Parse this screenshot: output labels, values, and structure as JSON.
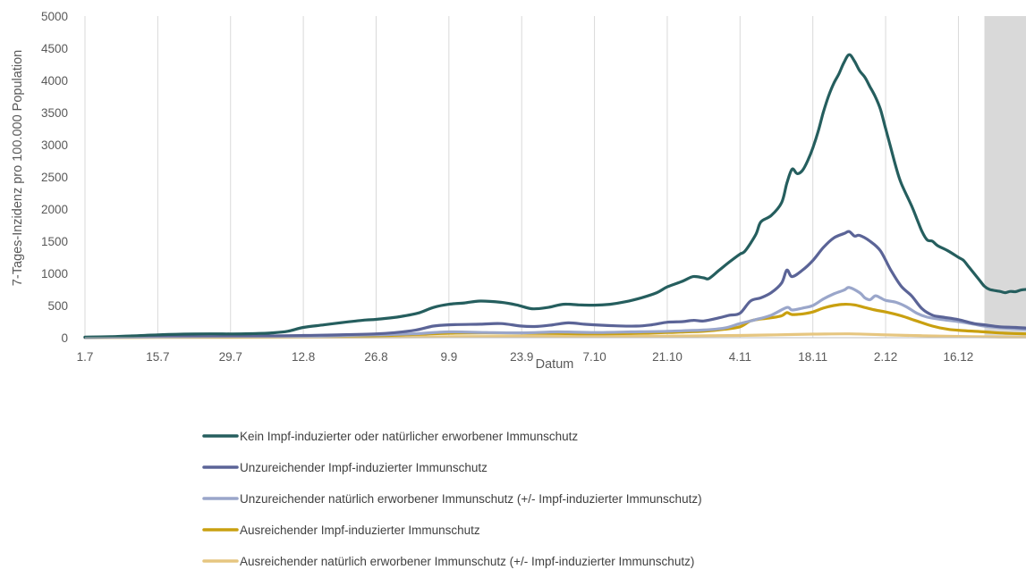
{
  "chart_data": {
    "type": "line",
    "xlabel": "Datum",
    "ylabel": "7-Tages-Inzidenz pro 100.000 Population",
    "ylim": [
      0,
      5000
    ],
    "yticks": [
      0,
      500,
      1000,
      1500,
      2000,
      2500,
      3000,
      3500,
      4000,
      4500,
      5000
    ],
    "xlim": [
      "2021-07-01",
      "2021-12-29"
    ],
    "xticks": [
      {
        "date": "2021-07-01",
        "label": "1.7"
      },
      {
        "date": "2021-07-15",
        "label": "15.7"
      },
      {
        "date": "2021-07-29",
        "label": "29.7"
      },
      {
        "date": "2021-08-12",
        "label": "12.8"
      },
      {
        "date": "2021-08-26",
        "label": "26.8"
      },
      {
        "date": "2021-09-09",
        "label": "9.9"
      },
      {
        "date": "2021-09-23",
        "label": "23.9"
      },
      {
        "date": "2021-10-07",
        "label": "7.10"
      },
      {
        "date": "2021-10-21",
        "label": "21.10"
      },
      {
        "date": "2021-11-04",
        "label": "4.11"
      },
      {
        "date": "2021-11-18",
        "label": "18.11"
      },
      {
        "date": "2021-12-02",
        "label": "2.12"
      },
      {
        "date": "2021-12-16",
        "label": "16.12"
      }
    ],
    "shaded_region": [
      "2021-12-21",
      "2021-12-29"
    ],
    "shaded_color": "#d9d9d9",
    "grid": "vertical",
    "legend_position": "bottom",
    "series": [
      {
        "name": "Kein Impf-induzierter oder natürlicher erworbener Immunschutz",
        "color": "#255e5e",
        "points": [
          [
            "2021-07-01",
            10
          ],
          [
            "2021-07-06",
            15
          ],
          [
            "2021-07-10",
            28
          ],
          [
            "2021-07-15",
            45
          ],
          [
            "2021-07-20",
            55
          ],
          [
            "2021-07-25",
            60
          ],
          [
            "2021-07-29",
            58
          ],
          [
            "2021-08-02",
            62
          ],
          [
            "2021-08-06",
            75
          ],
          [
            "2021-08-09",
            100
          ],
          [
            "2021-08-12",
            160
          ],
          [
            "2021-08-16",
            200
          ],
          [
            "2021-08-20",
            240
          ],
          [
            "2021-08-24",
            275
          ],
          [
            "2021-08-26",
            285
          ],
          [
            "2021-08-30",
            320
          ],
          [
            "2021-09-03",
            380
          ],
          [
            "2021-09-06",
            470
          ],
          [
            "2021-09-09",
            520
          ],
          [
            "2021-09-12",
            540
          ],
          [
            "2021-09-15",
            570
          ],
          [
            "2021-09-19",
            550
          ],
          [
            "2021-09-22",
            510
          ],
          [
            "2021-09-25",
            450
          ],
          [
            "2021-09-28",
            470
          ],
          [
            "2021-10-01",
            520
          ],
          [
            "2021-10-04",
            510
          ],
          [
            "2021-10-07",
            505
          ],
          [
            "2021-10-10",
            520
          ],
          [
            "2021-10-13",
            560
          ],
          [
            "2021-10-16",
            620
          ],
          [
            "2021-10-19",
            700
          ],
          [
            "2021-10-21",
            790
          ],
          [
            "2021-10-24",
            880
          ],
          [
            "2021-10-26",
            950
          ],
          [
            "2021-10-28",
            930
          ],
          [
            "2021-10-29",
            920
          ],
          [
            "2021-10-31",
            1050
          ],
          [
            "2021-11-02",
            1180
          ],
          [
            "2021-11-04",
            1300
          ],
          [
            "2021-11-05",
            1350
          ],
          [
            "2021-11-07",
            1600
          ],
          [
            "2021-11-08",
            1800
          ],
          [
            "2021-11-10",
            1900
          ],
          [
            "2021-11-12",
            2100
          ],
          [
            "2021-11-13",
            2400
          ],
          [
            "2021-11-14",
            2620
          ],
          [
            "2021-11-15",
            2550
          ],
          [
            "2021-11-16",
            2600
          ],
          [
            "2021-11-17",
            2750
          ],
          [
            "2021-11-18",
            2950
          ],
          [
            "2021-11-19",
            3200
          ],
          [
            "2021-11-20",
            3500
          ],
          [
            "2021-11-21",
            3750
          ],
          [
            "2021-11-22",
            3950
          ],
          [
            "2021-11-23",
            4100
          ],
          [
            "2021-11-24",
            4280
          ],
          [
            "2021-11-25",
            4400
          ],
          [
            "2021-11-26",
            4300
          ],
          [
            "2021-11-27",
            4150
          ],
          [
            "2021-11-28",
            4050
          ],
          [
            "2021-11-29",
            3900
          ],
          [
            "2021-11-30",
            3750
          ],
          [
            "2021-12-01",
            3550
          ],
          [
            "2021-12-02",
            3250
          ],
          [
            "2021-12-03",
            2950
          ],
          [
            "2021-12-04",
            2650
          ],
          [
            "2021-12-05",
            2400
          ],
          [
            "2021-12-07",
            2050
          ],
          [
            "2021-12-08",
            1850
          ],
          [
            "2021-12-09",
            1650
          ],
          [
            "2021-12-10",
            1520
          ],
          [
            "2021-12-11",
            1500
          ],
          [
            "2021-12-12",
            1430
          ],
          [
            "2021-12-14",
            1350
          ],
          [
            "2021-12-16",
            1250
          ],
          [
            "2021-12-17",
            1200
          ],
          [
            "2021-12-18",
            1100
          ],
          [
            "2021-12-19",
            1000
          ],
          [
            "2021-12-20",
            900
          ],
          [
            "2021-12-21",
            800
          ],
          [
            "2021-12-22",
            750
          ],
          [
            "2021-12-24",
            720
          ],
          [
            "2021-12-25",
            700
          ],
          [
            "2021-12-26",
            720
          ],
          [
            "2021-12-27",
            715
          ],
          [
            "2021-12-28",
            740
          ],
          [
            "2021-12-29",
            750
          ]
        ]
      },
      {
        "name": "Unzureichender Impf-induzierter Immunschutz",
        "color": "#5b6497",
        "points": [
          [
            "2021-07-01",
            5
          ],
          [
            "2021-07-15",
            15
          ],
          [
            "2021-07-29",
            20
          ],
          [
            "2021-08-12",
            35
          ],
          [
            "2021-08-26",
            60
          ],
          [
            "2021-09-02",
            110
          ],
          [
            "2021-09-06",
            180
          ],
          [
            "2021-09-09",
            200
          ],
          [
            "2021-09-15",
            210
          ],
          [
            "2021-09-19",
            220
          ],
          [
            "2021-09-23",
            180
          ],
          [
            "2021-09-26",
            175
          ],
          [
            "2021-09-29",
            200
          ],
          [
            "2021-10-02",
            230
          ],
          [
            "2021-10-05",
            210
          ],
          [
            "2021-10-07",
            200
          ],
          [
            "2021-10-11",
            185
          ],
          [
            "2021-10-15",
            180
          ],
          [
            "2021-10-18",
            200
          ],
          [
            "2021-10-21",
            240
          ],
          [
            "2021-10-24",
            250
          ],
          [
            "2021-10-26",
            270
          ],
          [
            "2021-10-28",
            260
          ],
          [
            "2021-10-31",
            310
          ],
          [
            "2021-11-02",
            350
          ],
          [
            "2021-11-04",
            380
          ],
          [
            "2021-11-06",
            570
          ],
          [
            "2021-11-08",
            620
          ],
          [
            "2021-11-10",
            700
          ],
          [
            "2021-11-12",
            850
          ],
          [
            "2021-11-13",
            1050
          ],
          [
            "2021-11-14",
            950
          ],
          [
            "2021-11-16",
            1050
          ],
          [
            "2021-11-18",
            1200
          ],
          [
            "2021-11-20",
            1400
          ],
          [
            "2021-11-22",
            1550
          ],
          [
            "2021-11-24",
            1620
          ],
          [
            "2021-11-25",
            1650
          ],
          [
            "2021-11-26",
            1580
          ],
          [
            "2021-11-27",
            1590
          ],
          [
            "2021-11-29",
            1500
          ],
          [
            "2021-12-01",
            1350
          ],
          [
            "2021-12-03",
            1050
          ],
          [
            "2021-12-05",
            800
          ],
          [
            "2021-12-07",
            650
          ],
          [
            "2021-12-09",
            450
          ],
          [
            "2021-12-11",
            350
          ],
          [
            "2021-12-13",
            320
          ],
          [
            "2021-12-16",
            280
          ],
          [
            "2021-12-19",
            220
          ],
          [
            "2021-12-21",
            200
          ],
          [
            "2021-12-24",
            170
          ],
          [
            "2021-12-27",
            160
          ],
          [
            "2021-12-29",
            150
          ]
        ]
      },
      {
        "name": "Unzureichender natürlich erworbener Immunschutz (+/- Impf-induzierter Immunschutz)",
        "color": "#9aa6ca",
        "points": [
          [
            "2021-07-01",
            5
          ],
          [
            "2021-07-15",
            10
          ],
          [
            "2021-07-29",
            15
          ],
          [
            "2021-08-12",
            25
          ],
          [
            "2021-08-26",
            45
          ],
          [
            "2021-09-02",
            60
          ],
          [
            "2021-09-09",
            90
          ],
          [
            "2021-09-16",
            80
          ],
          [
            "2021-09-23",
            75
          ],
          [
            "2021-09-30",
            90
          ],
          [
            "2021-10-07",
            80
          ],
          [
            "2021-10-14",
            90
          ],
          [
            "2021-10-21",
            100
          ],
          [
            "2021-10-28",
            120
          ],
          [
            "2021-11-01",
            150
          ],
          [
            "2021-11-04",
            220
          ],
          [
            "2021-11-07",
            280
          ],
          [
            "2021-11-10",
            350
          ],
          [
            "2021-11-13",
            470
          ],
          [
            "2021-11-14",
            430
          ],
          [
            "2021-11-16",
            460
          ],
          [
            "2021-11-18",
            500
          ],
          [
            "2021-11-20",
            600
          ],
          [
            "2021-11-22",
            680
          ],
          [
            "2021-11-24",
            740
          ],
          [
            "2021-11-25",
            780
          ],
          [
            "2021-11-27",
            700
          ],
          [
            "2021-11-28",
            620
          ],
          [
            "2021-11-29",
            590
          ],
          [
            "2021-11-30",
            650
          ],
          [
            "2021-12-01",
            620
          ],
          [
            "2021-12-02",
            580
          ],
          [
            "2021-12-04",
            550
          ],
          [
            "2021-12-06",
            480
          ],
          [
            "2021-12-08",
            380
          ],
          [
            "2021-12-10",
            320
          ],
          [
            "2021-12-13",
            280
          ],
          [
            "2021-12-16",
            250
          ],
          [
            "2021-12-19",
            210
          ],
          [
            "2021-12-21",
            180
          ],
          [
            "2021-12-25",
            150
          ],
          [
            "2021-12-29",
            130
          ]
        ]
      },
      {
        "name": "Ausreichender Impf-induzierter Immunschutz",
        "color": "#c9a010",
        "points": [
          [
            "2021-07-01",
            5
          ],
          [
            "2021-07-15",
            8
          ],
          [
            "2021-07-29",
            10
          ],
          [
            "2021-08-12",
            15
          ],
          [
            "2021-08-26",
            30
          ],
          [
            "2021-09-02",
            50
          ],
          [
            "2021-09-09",
            70
          ],
          [
            "2021-09-16",
            75
          ],
          [
            "2021-09-23",
            70
          ],
          [
            "2021-09-30",
            65
          ],
          [
            "2021-10-07",
            60
          ],
          [
            "2021-10-14",
            65
          ],
          [
            "2021-10-21",
            80
          ],
          [
            "2021-10-28",
            100
          ],
          [
            "2021-11-01",
            130
          ],
          [
            "2021-11-04",
            170
          ],
          [
            "2021-11-06",
            260
          ],
          [
            "2021-11-08",
            290
          ],
          [
            "2021-11-10",
            310
          ],
          [
            "2021-11-12",
            340
          ],
          [
            "2021-11-13",
            390
          ],
          [
            "2021-11-14",
            360
          ],
          [
            "2021-11-16",
            370
          ],
          [
            "2021-11-18",
            400
          ],
          [
            "2021-11-20",
            460
          ],
          [
            "2021-11-22",
            500
          ],
          [
            "2021-11-24",
            520
          ],
          [
            "2021-11-26",
            510
          ],
          [
            "2021-11-28",
            470
          ],
          [
            "2021-11-30",
            430
          ],
          [
            "2021-12-02",
            400
          ],
          [
            "2021-12-05",
            340
          ],
          [
            "2021-12-08",
            260
          ],
          [
            "2021-12-11",
            180
          ],
          [
            "2021-12-14",
            130
          ],
          [
            "2021-12-17",
            110
          ],
          [
            "2021-12-21",
            90
          ],
          [
            "2021-12-25",
            70
          ],
          [
            "2021-12-29",
            60
          ]
        ]
      },
      {
        "name": "Ausreichender natürlich erworbener Immunschutz (+/- Impf-induzierter Immunschutz)",
        "color": "#e6c680",
        "points": [
          [
            "2021-07-01",
            3
          ],
          [
            "2021-07-29",
            5
          ],
          [
            "2021-08-26",
            10
          ],
          [
            "2021-09-23",
            20
          ],
          [
            "2021-10-21",
            25
          ],
          [
            "2021-11-04",
            35
          ],
          [
            "2021-11-11",
            45
          ],
          [
            "2021-11-18",
            55
          ],
          [
            "2021-11-25",
            60
          ],
          [
            "2021-12-02",
            45
          ],
          [
            "2021-12-09",
            30
          ],
          [
            "2021-12-16",
            20
          ],
          [
            "2021-12-23",
            12
          ],
          [
            "2021-12-29",
            10
          ]
        ]
      }
    ]
  }
}
